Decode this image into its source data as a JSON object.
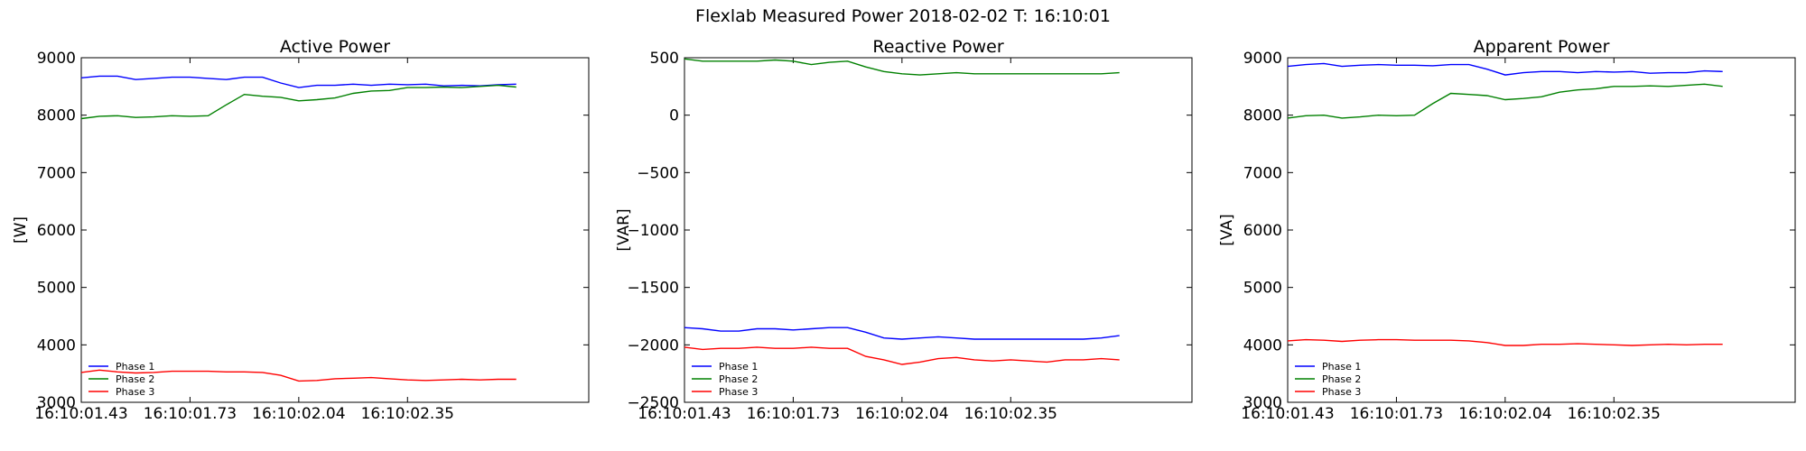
{
  "figure": {
    "title": "Flexlab Measured Power 2018-02-02 T: 16:10:01"
  },
  "chart_data": [
    {
      "type": "line",
      "title": "Active Power",
      "xlabel": "",
      "ylabel": "[W]",
      "xlim": [
        0,
        1.4
      ],
      "ylim": [
        3000,
        9000
      ],
      "x_ticks": [
        0.0,
        0.3,
        0.6,
        0.9
      ],
      "x_tick_labels": [
        "16:10:01.43",
        "16:10:01.73",
        "16:10:02.04",
        "16:10:02.35"
      ],
      "y_ticks": [
        3000,
        4000,
        5000,
        6000,
        7000,
        8000,
        9000
      ],
      "y_tick_labels": [
        "3000",
        "4000",
        "5000",
        "6000",
        "7000",
        "8000",
        "9000"
      ],
      "grid": false,
      "legend": {
        "position": "lower-left",
        "entries": [
          "Phase 1",
          "Phase 2",
          "Phase 3"
        ]
      },
      "x": [
        0.0,
        0.05,
        0.1,
        0.15,
        0.2,
        0.25,
        0.3,
        0.35,
        0.4,
        0.45,
        0.5,
        0.55,
        0.6,
        0.65,
        0.7,
        0.75,
        0.8,
        0.85,
        0.9,
        0.95,
        1.0,
        1.05,
        1.1,
        1.15,
        1.2
      ],
      "series": [
        {
          "name": "Phase 1",
          "color": "#0000ff",
          "values": [
            8650,
            8680,
            8680,
            8620,
            8640,
            8660,
            8660,
            8640,
            8620,
            8660,
            8660,
            8560,
            8480,
            8520,
            8520,
            8540,
            8520,
            8540,
            8530,
            8540,
            8510,
            8520,
            8510,
            8530,
            8540
          ]
        },
        {
          "name": "Phase 2",
          "color": "#008000",
          "values": [
            7940,
            7980,
            7990,
            7960,
            7970,
            7990,
            7980,
            7990,
            8180,
            8360,
            8330,
            8310,
            8250,
            8270,
            8300,
            8380,
            8420,
            8430,
            8480,
            8480,
            8490,
            8480,
            8500,
            8520,
            8490
          ]
        },
        {
          "name": "Phase 3",
          "color": "#ff0000",
          "values": [
            3520,
            3560,
            3530,
            3510,
            3520,
            3540,
            3540,
            3540,
            3530,
            3530,
            3520,
            3470,
            3370,
            3380,
            3410,
            3420,
            3430,
            3410,
            3390,
            3380,
            3390,
            3400,
            3390,
            3400,
            3400
          ]
        }
      ]
    },
    {
      "type": "line",
      "title": "Reactive Power",
      "xlabel": "",
      "ylabel": "[VAR]",
      "xlim": [
        0,
        1.4
      ],
      "ylim": [
        -2500,
        500
      ],
      "x_ticks": [
        0.0,
        0.3,
        0.6,
        0.9
      ],
      "x_tick_labels": [
        "16:10:01.43",
        "16:10:01.73",
        "16:10:02.04",
        "16:10:02.35"
      ],
      "y_ticks": [
        -2500,
        -2000,
        -1500,
        -1000,
        -500,
        0,
        500
      ],
      "y_tick_labels": [
        "−2500",
        "−2000",
        "−1500",
        "−1000",
        "−500",
        "0",
        "500"
      ],
      "grid": false,
      "legend": {
        "position": "lower-left",
        "entries": [
          "Phase 1",
          "Phase 2",
          "Phase 3"
        ]
      },
      "x": [
        0.0,
        0.05,
        0.1,
        0.15,
        0.2,
        0.25,
        0.3,
        0.35,
        0.4,
        0.45,
        0.5,
        0.55,
        0.6,
        0.65,
        0.7,
        0.75,
        0.8,
        0.85,
        0.9,
        0.95,
        1.0,
        1.05,
        1.1,
        1.15,
        1.2
      ],
      "series": [
        {
          "name": "Phase 1",
          "color": "#0000ff",
          "values": [
            -1850,
            -1860,
            -1880,
            -1880,
            -1860,
            -1860,
            -1870,
            -1860,
            -1850,
            -1850,
            -1890,
            -1940,
            -1950,
            -1940,
            -1930,
            -1940,
            -1950,
            -1950,
            -1950,
            -1950,
            -1950,
            -1950,
            -1950,
            -1940,
            -1920
          ]
        },
        {
          "name": "Phase 2",
          "color": "#008000",
          "values": [
            490,
            470,
            470,
            470,
            470,
            480,
            470,
            440,
            460,
            470,
            420,
            380,
            360,
            350,
            360,
            370,
            360,
            360,
            360,
            360,
            360,
            360,
            360,
            360,
            370
          ]
        },
        {
          "name": "Phase 3",
          "color": "#ff0000",
          "values": [
            -2020,
            -2040,
            -2030,
            -2030,
            -2020,
            -2030,
            -2030,
            -2020,
            -2030,
            -2030,
            -2100,
            -2130,
            -2170,
            -2150,
            -2120,
            -2110,
            -2130,
            -2140,
            -2130,
            -2140,
            -2150,
            -2130,
            -2130,
            -2120,
            -2130
          ]
        }
      ]
    },
    {
      "type": "line",
      "title": "Apparent Power",
      "xlabel": "",
      "ylabel": "[VA]",
      "xlim": [
        0,
        1.4
      ],
      "ylim": [
        3000,
        9000
      ],
      "x_ticks": [
        0.0,
        0.3,
        0.6,
        0.9
      ],
      "x_tick_labels": [
        "16:10:01.43",
        "16:10:01.73",
        "16:10:02.04",
        "16:10:02.35"
      ],
      "y_ticks": [
        3000,
        4000,
        5000,
        6000,
        7000,
        8000,
        9000
      ],
      "y_tick_labels": [
        "3000",
        "4000",
        "5000",
        "6000",
        "7000",
        "8000",
        "9000"
      ],
      "grid": false,
      "legend": {
        "position": "lower-left",
        "entries": [
          "Phase 1",
          "Phase 2",
          "Phase 3"
        ]
      },
      "x": [
        0.0,
        0.05,
        0.1,
        0.15,
        0.2,
        0.25,
        0.3,
        0.35,
        0.4,
        0.45,
        0.5,
        0.55,
        0.6,
        0.65,
        0.7,
        0.75,
        0.8,
        0.85,
        0.9,
        0.95,
        1.0,
        1.05,
        1.1,
        1.15,
        1.2
      ],
      "series": [
        {
          "name": "Phase 1",
          "color": "#0000ff",
          "values": [
            8850,
            8880,
            8900,
            8850,
            8870,
            8880,
            8870,
            8870,
            8860,
            8880,
            8880,
            8800,
            8700,
            8740,
            8760,
            8760,
            8740,
            8760,
            8750,
            8760,
            8730,
            8740,
            8740,
            8770,
            8760
          ]
        },
        {
          "name": "Phase 2",
          "color": "#008000",
          "values": [
            7950,
            7990,
            8000,
            7950,
            7970,
            8000,
            7990,
            8000,
            8200,
            8380,
            8360,
            8340,
            8270,
            8290,
            8320,
            8400,
            8440,
            8460,
            8500,
            8500,
            8510,
            8500,
            8520,
            8540,
            8500
          ]
        },
        {
          "name": "Phase 3",
          "color": "#ff0000",
          "values": [
            4070,
            4090,
            4080,
            4060,
            4080,
            4090,
            4090,
            4080,
            4080,
            4080,
            4070,
            4040,
            3990,
            3990,
            4010,
            4010,
            4020,
            4010,
            4000,
            3990,
            4000,
            4010,
            4000,
            4010,
            4010
          ]
        }
      ]
    }
  ]
}
